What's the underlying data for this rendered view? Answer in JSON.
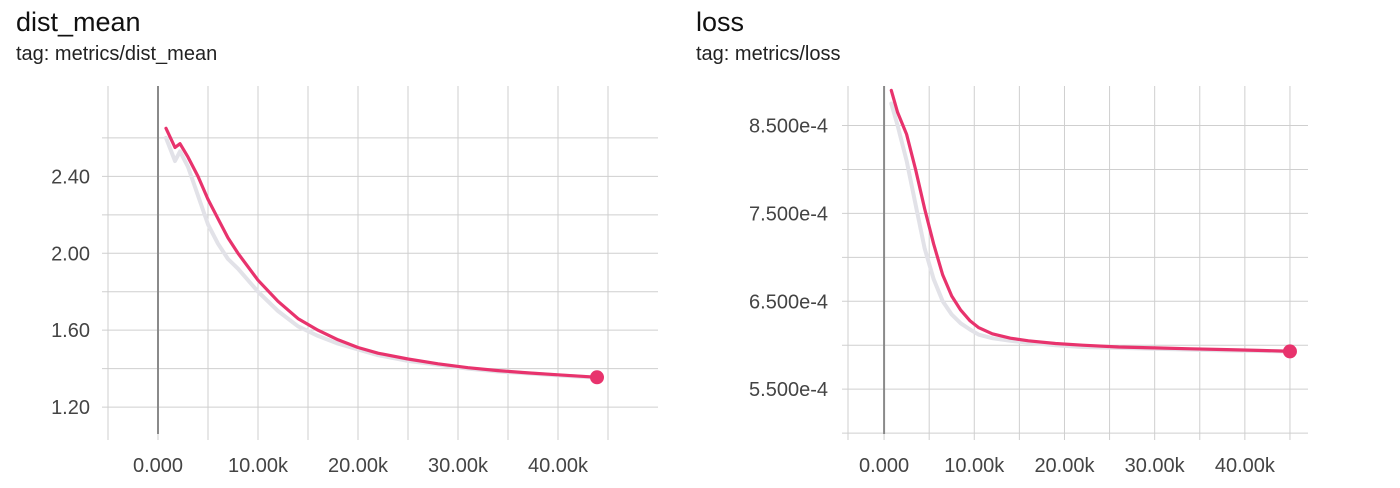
{
  "panels": [
    {
      "title": "dist_mean",
      "subtitle": "tag: metrics/dist_mean"
    },
    {
      "title": "loss",
      "subtitle": "tag: metrics/loss"
    }
  ],
  "colors": {
    "series": "#e8336d",
    "raw_series": "#e2e2e8",
    "grid": "#cfcfcf",
    "zero_line": "#8a8a8a"
  },
  "chart_data": [
    {
      "type": "line",
      "title": "dist_mean",
      "xlabel": "",
      "ylabel": "",
      "grid": true,
      "xlim": [
        -5000,
        50000
      ],
      "ylim": [
        1.06,
        2.87
      ],
      "xticks": [
        0,
        10000,
        20000,
        30000,
        40000
      ],
      "xtick_labels": [
        "0.000",
        "10.00k",
        "20.00k",
        "30.00k",
        "40.00k"
      ],
      "yticks": [
        1.2,
        1.6,
        2.0,
        2.4
      ],
      "ytick_labels": [
        "1.20",
        "1.60",
        "2.00",
        "2.40"
      ],
      "series": [
        {
          "role": "smoothed",
          "x": [
            800,
            1700,
            2200,
            3000,
            4000,
            5000,
            6000,
            7000,
            8000,
            10000,
            12000,
            14000,
            16000,
            18000,
            20000,
            22000,
            25000,
            28000,
            31000,
            34000,
            37000,
            40000,
            43000,
            43900
          ],
          "y": [
            2.65,
            2.55,
            2.57,
            2.5,
            2.4,
            2.28,
            2.18,
            2.08,
            2.0,
            1.86,
            1.75,
            1.66,
            1.6,
            1.55,
            1.51,
            1.48,
            1.45,
            1.425,
            1.405,
            1.39,
            1.378,
            1.368,
            1.358,
            1.355
          ]
        },
        {
          "role": "raw",
          "x": [
            800,
            1700,
            2200,
            3000,
            4000,
            5000,
            6000,
            7000,
            8000,
            10000,
            12000,
            14000,
            16000,
            18000,
            20000,
            22000,
            25000,
            28000,
            31000,
            34000,
            37000,
            40000,
            43000,
            43900
          ],
          "y": [
            2.6,
            2.48,
            2.53,
            2.45,
            2.3,
            2.15,
            2.05,
            1.97,
            1.92,
            1.8,
            1.7,
            1.62,
            1.57,
            1.53,
            1.5,
            1.47,
            1.44,
            1.42,
            1.4,
            1.385,
            1.375,
            1.365,
            1.356,
            1.354
          ]
        }
      ],
      "last_point": {
        "x": 43900,
        "y": 1.355
      }
    },
    {
      "type": "line",
      "title": "loss",
      "xlabel": "",
      "ylabel": "",
      "grid": true,
      "xlim": [
        -4000,
        47000
      ],
      "ylim": [
        0.000499,
        0.000895
      ],
      "xticks": [
        0,
        10000,
        20000,
        30000,
        40000
      ],
      "xtick_labels": [
        "0.000",
        "10.00k",
        "20.00k",
        "30.00k",
        "40.00k"
      ],
      "yticks": [
        0.00055,
        0.00065,
        0.00075,
        0.00085
      ],
      "ytick_labels": [
        "5.500e-4",
        "6.500e-4",
        "7.500e-4",
        "8.500e-4"
      ],
      "series": [
        {
          "role": "smoothed",
          "x": [
            800,
            1500,
            2500,
            3500,
            4500,
            5500,
            6500,
            7500,
            8500,
            9500,
            10500,
            12000,
            14000,
            16000,
            19000,
            22000,
            26000,
            30000,
            34000,
            38000,
            42000,
            44000,
            45000
          ],
          "y": [
            0.00089,
            0.000865,
            0.00084,
            0.0008,
            0.000755,
            0.000715,
            0.00068,
            0.000656,
            0.00064,
            0.000628,
            0.00062,
            0.000613,
            0.000608,
            0.000605,
            0.000602,
            0.0006,
            0.000598,
            0.000597,
            0.000596,
            0.000595,
            0.000594,
            0.0005935,
            0.000593
          ]
        },
        {
          "role": "raw",
          "x": [
            800,
            1500,
            2500,
            3500,
            4500,
            5500,
            6500,
            7500,
            8500,
            9500,
            10500,
            12000,
            14000,
            16000,
            19000,
            22000,
            26000,
            30000,
            34000,
            38000,
            42000,
            44000,
            45000
          ],
          "y": [
            0.000875,
            0.00085,
            0.00081,
            0.00076,
            0.00071,
            0.000675,
            0.00065,
            0.000635,
            0.000625,
            0.000618,
            0.000612,
            0.000608,
            0.000605,
            0.000603,
            0.0006,
            0.000598,
            0.000597,
            0.000596,
            0.000595,
            0.000594,
            0.0005935,
            0.000593,
            0.000593
          ]
        }
      ],
      "last_point": {
        "x": 45000,
        "y": 0.000593
      }
    }
  ]
}
